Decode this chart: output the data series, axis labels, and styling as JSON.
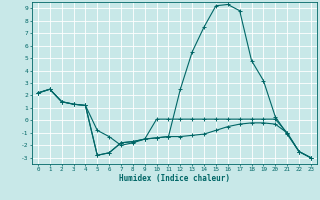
{
  "xlabel": "Humidex (Indice chaleur)",
  "background_color": "#c8e8e8",
  "grid_color": "#ffffff",
  "line_color": "#006666",
  "xlim": [
    -0.5,
    23.5
  ],
  "ylim": [
    -3.5,
    9.5
  ],
  "xticks": [
    0,
    1,
    2,
    3,
    4,
    5,
    6,
    7,
    8,
    9,
    10,
    11,
    12,
    13,
    14,
    15,
    16,
    17,
    18,
    19,
    20,
    21,
    22,
    23
  ],
  "yticks": [
    -3,
    -2,
    -1,
    0,
    1,
    2,
    3,
    4,
    5,
    6,
    7,
    8,
    9
  ],
  "series1": [
    2.2,
    2.5,
    1.5,
    1.3,
    1.2,
    -0.8,
    -1.3,
    -2.0,
    -1.8,
    -1.5,
    -1.4,
    -1.3,
    2.5,
    5.5,
    7.5,
    9.2,
    9.3,
    8.8,
    4.8,
    3.2,
    0.3,
    -1.1,
    -2.5,
    -3.0
  ],
  "series2": [
    2.2,
    2.5,
    1.5,
    1.3,
    1.2,
    -2.8,
    -2.6,
    -1.8,
    -1.7,
    -1.5,
    -1.4,
    -1.3,
    -1.3,
    -1.2,
    -1.1,
    -0.8,
    -0.5,
    -0.3,
    -0.2,
    -0.2,
    -0.3,
    -1.0,
    -2.5,
    -3.0
  ],
  "series3": [
    2.2,
    2.5,
    1.5,
    1.3,
    1.2,
    -2.8,
    -2.6,
    -1.8,
    -1.7,
    -1.5,
    0.1,
    0.1,
    0.1,
    0.1,
    0.1,
    0.1,
    0.1,
    0.1,
    0.1,
    0.1,
    0.1,
    -1.0,
    -2.5,
    -3.0
  ]
}
